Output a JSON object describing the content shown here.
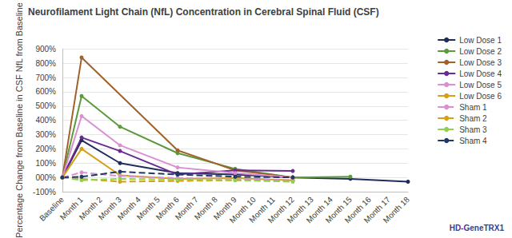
{
  "chart_data": {
    "type": "line",
    "title": "Neurofilament Light Chain (NfL) Concentration in Cerebral Spinal Fluid (CSF)",
    "y_label": "Percentage Change from Baseline in CSF NfL from Baseline",
    "annotations": [
      "HD-GeneTRX1"
    ],
    "categories": [
      "Baseline",
      "Month 1",
      "Month 2",
      "Month 3",
      "Month 4",
      "Month 5",
      "Month 6",
      "Month 7",
      "Month 8",
      "Month 9",
      "Month 10",
      "Month 11",
      "Month 12",
      "Month 13",
      "Month 14",
      "Month 15",
      "Month 16",
      "Month 17",
      "Month 18"
    ],
    "ylim": [
      -100,
      900
    ],
    "yticks": [
      {
        "value": -100,
        "label": "-100%"
      },
      {
        "value": 0,
        "label": "000%"
      },
      {
        "value": 100,
        "label": "100%"
      },
      {
        "value": 200,
        "label": "200%"
      },
      {
        "value": 300,
        "label": "300%"
      },
      {
        "value": 400,
        "label": "400%"
      },
      {
        "value": 500,
        "label": "500%"
      },
      {
        "value": 600,
        "label": "600%"
      },
      {
        "value": 700,
        "label": "700%"
      },
      {
        "value": 800,
        "label": "800%"
      },
      {
        "value": 900,
        "label": "900%"
      }
    ],
    "grid": true,
    "legend": "right",
    "series": [
      {
        "name": "Low Dose 1",
        "color": "#1f2d5c",
        "marker": "circle",
        "line_style": "solid",
        "values": [
          0,
          260,
          null,
          100,
          null,
          null,
          30,
          null,
          null,
          20,
          null,
          null,
          0,
          null,
          null,
          -10,
          null,
          null,
          -30
        ]
      },
      {
        "name": "Low Dose 2",
        "color": "#5b9a3c",
        "marker": "circle",
        "line_style": "solid",
        "values": [
          0,
          570,
          null,
          355,
          null,
          null,
          170,
          null,
          null,
          60,
          null,
          null,
          0,
          null,
          null,
          5,
          null,
          null,
          null
        ]
      },
      {
        "name": "Low Dose 3",
        "color": "#a0622a",
        "marker": "circle",
        "line_style": "solid",
        "values": [
          0,
          840,
          null,
          null,
          null,
          null,
          190,
          null,
          null,
          50,
          null,
          null,
          0,
          null,
          null,
          null,
          null,
          null,
          null
        ]
      },
      {
        "name": "Low Dose 4",
        "color": "#6a2c91",
        "marker": "circle",
        "line_style": "solid",
        "values": [
          0,
          280,
          null,
          185,
          null,
          null,
          20,
          null,
          null,
          50,
          null,
          null,
          45,
          null,
          null,
          null,
          null,
          null,
          null
        ]
      },
      {
        "name": "Low Dose 5",
        "color": "#d98fd0",
        "marker": "circle",
        "line_style": "solid",
        "values": [
          0,
          430,
          null,
          225,
          null,
          null,
          70,
          null,
          null,
          30,
          null,
          null,
          0,
          null,
          null,
          null,
          null,
          null,
          null
        ]
      },
      {
        "name": "Low Dose 6",
        "color": "#d4a017",
        "marker": "circle",
        "line_style": "solid",
        "values": [
          0,
          200,
          null,
          15,
          null,
          null,
          -10,
          null,
          null,
          -5,
          null,
          null,
          -20,
          null,
          null,
          null,
          null,
          null,
          null
        ]
      },
      {
        "name": "Sham 1",
        "color": "#d98fd0",
        "marker": "circle",
        "line_style": "dashed",
        "values": [
          0,
          35,
          null,
          10,
          null,
          null,
          -5,
          null,
          null,
          -10,
          null,
          null,
          -20,
          null,
          null,
          null,
          null,
          null,
          null
        ]
      },
      {
        "name": "Sham 2",
        "color": "#d4a017",
        "marker": "circle",
        "line_style": "dashed",
        "values": [
          0,
          -10,
          null,
          -30,
          null,
          null,
          -25,
          null,
          null,
          -20,
          null,
          null,
          -25,
          null,
          null,
          null,
          null,
          null,
          null
        ]
      },
      {
        "name": "Sham 3",
        "color": "#92d050",
        "marker": "circle",
        "line_style": "dashed",
        "values": [
          0,
          -20,
          null,
          -10,
          null,
          null,
          -15,
          null,
          null,
          -20,
          null,
          null,
          -30,
          null,
          null,
          null,
          null,
          null,
          null
        ]
      },
      {
        "name": "Sham 4",
        "color": "#1f3864",
        "marker": "circle",
        "line_style": "dashed",
        "values": [
          0,
          5,
          null,
          40,
          null,
          null,
          20,
          null,
          null,
          5,
          null,
          null,
          0,
          null,
          null,
          null,
          null,
          null,
          null
        ]
      }
    ]
  }
}
